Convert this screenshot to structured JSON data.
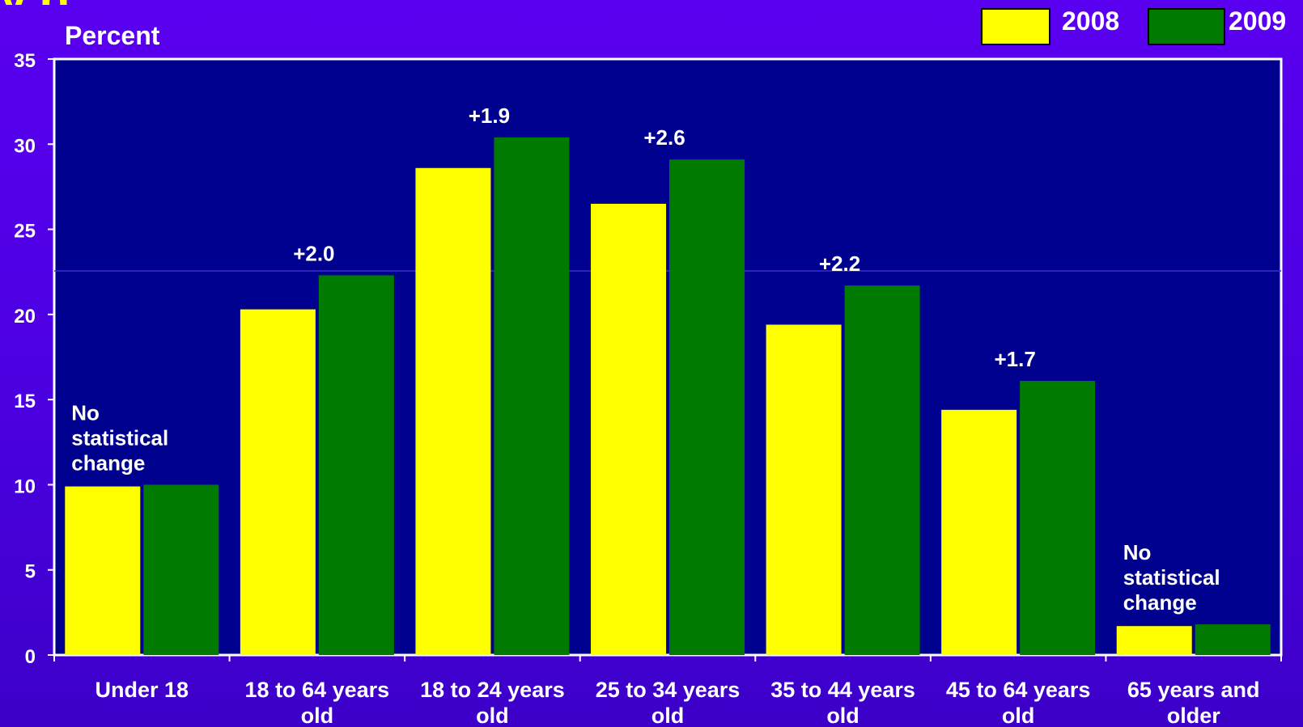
{
  "title_fragment": "y g",
  "legend": [
    {
      "name": "2008",
      "color": "#ffff00"
    },
    {
      "name": "2009",
      "color": "#007a00"
    }
  ],
  "chart_data": {
    "type": "bar",
    "ylabel": "Percent",
    "ylim": [
      0,
      35
    ],
    "yticks": [
      0,
      5,
      10,
      15,
      20,
      25,
      30,
      35
    ],
    "categories": [
      [
        "Under 18"
      ],
      [
        "18 to 64 years",
        "old"
      ],
      [
        "18 to 24 years",
        "old"
      ],
      [
        "25 to 34 years",
        "old"
      ],
      [
        "35 to 44 years",
        "old"
      ],
      [
        "45 to 64 years",
        "old"
      ],
      [
        "65 years and",
        "older"
      ]
    ],
    "series": [
      {
        "name": "2008",
        "color": "#ffff00",
        "values": [
          9.9,
          20.3,
          28.6,
          26.5,
          19.4,
          14.4,
          1.7
        ]
      },
      {
        "name": "2009",
        "color": "#007a00",
        "values": [
          10.0,
          22.3,
          30.4,
          29.1,
          21.7,
          16.1,
          1.8
        ]
      }
    ],
    "annotations": [
      {
        "category": 0,
        "lines": [
          "No",
          "statistical",
          "change"
        ]
      },
      {
        "category": 1,
        "lines": [
          "+2.0"
        ]
      },
      {
        "category": 2,
        "lines": [
          "+1.9"
        ]
      },
      {
        "category": 3,
        "lines": [
          "+2.6"
        ]
      },
      {
        "category": 4,
        "lines": [
          "+2.2"
        ]
      },
      {
        "category": 5,
        "lines": [
          "+1.7"
        ]
      },
      {
        "category": 6,
        "lines": [
          "No",
          "statistical",
          "change"
        ]
      }
    ],
    "plot_background": "#00008f"
  }
}
